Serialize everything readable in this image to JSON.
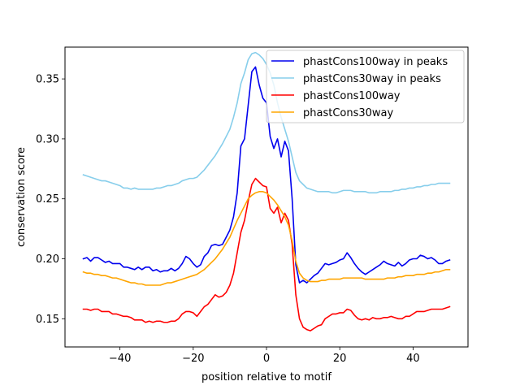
{
  "chart_data": {
    "type": "line",
    "title": "",
    "xlabel": "position relative to motif",
    "ylabel": "conservation score",
    "xlim": [
      -55,
      55
    ],
    "ylim": [
      0.1265,
      0.3765
    ],
    "xticks": [
      -40,
      -20,
      0,
      20,
      40
    ],
    "xtick_labels": [
      "−40",
      "−20",
      "0",
      "20",
      "40"
    ],
    "yticks": [
      0.15,
      0.2,
      0.25,
      0.3,
      0.35
    ],
    "ytick_labels": [
      "0.15",
      "0.20",
      "0.25",
      "0.30",
      "0.35"
    ],
    "legend_position": "top-right",
    "x": [
      -50,
      -49,
      -48,
      -47,
      -46,
      -45,
      -44,
      -43,
      -42,
      -41,
      -40,
      -39,
      -38,
      -37,
      -36,
      -35,
      -34,
      -33,
      -32,
      -31,
      -30,
      -29,
      -28,
      -27,
      -26,
      -25,
      -24,
      -23,
      -22,
      -21,
      -20,
      -19,
      -18,
      -17,
      -16,
      -15,
      -14,
      -13,
      -12,
      -11,
      -10,
      -9,
      -8,
      -7,
      -6,
      -5,
      -4,
      -3,
      -2,
      -1,
      0,
      1,
      2,
      3,
      4,
      5,
      6,
      7,
      8,
      9,
      10,
      11,
      12,
      13,
      14,
      15,
      16,
      17,
      18,
      19,
      20,
      21,
      22,
      23,
      24,
      25,
      26,
      27,
      28,
      29,
      30,
      31,
      32,
      33,
      34,
      35,
      36,
      37,
      38,
      39,
      40,
      41,
      42,
      43,
      44,
      45,
      46,
      47,
      48,
      49,
      50
    ],
    "series": [
      {
        "name": "phastCons100way in peaks",
        "color": "#0000ee",
        "values": [
          0.2,
          0.201,
          0.198,
          0.201,
          0.201,
          0.199,
          0.197,
          0.198,
          0.196,
          0.196,
          0.196,
          0.193,
          0.193,
          0.192,
          0.191,
          0.193,
          0.191,
          0.193,
          0.193,
          0.19,
          0.191,
          0.189,
          0.19,
          0.19,
          0.192,
          0.19,
          0.192,
          0.196,
          0.202,
          0.2,
          0.196,
          0.193,
          0.195,
          0.202,
          0.205,
          0.211,
          0.212,
          0.211,
          0.212,
          0.218,
          0.224,
          0.235,
          0.255,
          0.294,
          0.3,
          0.328,
          0.356,
          0.36,
          0.345,
          0.334,
          0.33,
          0.302,
          0.292,
          0.3,
          0.285,
          0.298,
          0.29,
          0.25,
          0.195,
          0.18,
          0.182,
          0.18,
          0.183,
          0.186,
          0.188,
          0.192,
          0.196,
          0.195,
          0.196,
          0.197,
          0.199,
          0.2,
          0.205,
          0.201,
          0.196,
          0.192,
          0.189,
          0.187,
          0.189,
          0.191,
          0.193,
          0.195,
          0.198,
          0.196,
          0.195,
          0.194,
          0.197,
          0.194,
          0.196,
          0.199,
          0.2,
          0.2,
          0.203,
          0.202,
          0.2,
          0.201,
          0.199,
          0.196,
          0.196,
          0.198,
          0.199
        ]
      },
      {
        "name": "phastCons30way in peaks",
        "color": "#87ceeb",
        "values": [
          0.27,
          0.269,
          0.268,
          0.267,
          0.266,
          0.265,
          0.265,
          0.264,
          0.263,
          0.262,
          0.261,
          0.259,
          0.259,
          0.258,
          0.259,
          0.258,
          0.258,
          0.258,
          0.258,
          0.258,
          0.259,
          0.259,
          0.26,
          0.261,
          0.261,
          0.262,
          0.263,
          0.265,
          0.266,
          0.267,
          0.267,
          0.268,
          0.271,
          0.274,
          0.278,
          0.282,
          0.286,
          0.291,
          0.296,
          0.302,
          0.308,
          0.318,
          0.33,
          0.346,
          0.355,
          0.366,
          0.371,
          0.372,
          0.37,
          0.367,
          0.362,
          0.355,
          0.345,
          0.33,
          0.318,
          0.308,
          0.298,
          0.285,
          0.272,
          0.265,
          0.262,
          0.259,
          0.258,
          0.257,
          0.256,
          0.256,
          0.256,
          0.256,
          0.255,
          0.255,
          0.256,
          0.257,
          0.257,
          0.257,
          0.256,
          0.256,
          0.256,
          0.256,
          0.255,
          0.255,
          0.255,
          0.256,
          0.256,
          0.256,
          0.256,
          0.257,
          0.257,
          0.258,
          0.258,
          0.259,
          0.259,
          0.26,
          0.26,
          0.261,
          0.261,
          0.262,
          0.262,
          0.263,
          0.263,
          0.263,
          0.263
        ]
      },
      {
        "name": "phastCons100way",
        "color": "#ff0000",
        "values": [
          0.158,
          0.158,
          0.157,
          0.158,
          0.158,
          0.156,
          0.156,
          0.156,
          0.154,
          0.154,
          0.153,
          0.152,
          0.152,
          0.151,
          0.149,
          0.149,
          0.149,
          0.147,
          0.148,
          0.147,
          0.148,
          0.148,
          0.147,
          0.147,
          0.148,
          0.148,
          0.15,
          0.154,
          0.156,
          0.156,
          0.155,
          0.152,
          0.156,
          0.16,
          0.162,
          0.166,
          0.17,
          0.168,
          0.169,
          0.172,
          0.178,
          0.188,
          0.205,
          0.222,
          0.232,
          0.248,
          0.262,
          0.267,
          0.264,
          0.261,
          0.26,
          0.242,
          0.238,
          0.243,
          0.23,
          0.238,
          0.232,
          0.212,
          0.17,
          0.15,
          0.143,
          0.141,
          0.14,
          0.142,
          0.144,
          0.145,
          0.15,
          0.152,
          0.154,
          0.154,
          0.155,
          0.155,
          0.158,
          0.157,
          0.153,
          0.15,
          0.149,
          0.15,
          0.149,
          0.151,
          0.15,
          0.15,
          0.151,
          0.151,
          0.152,
          0.151,
          0.15,
          0.15,
          0.152,
          0.152,
          0.154,
          0.156,
          0.156,
          0.156,
          0.157,
          0.158,
          0.158,
          0.158,
          0.158,
          0.159,
          0.16
        ]
      },
      {
        "name": "phastCons30way",
        "color": "#ffa500",
        "values": [
          0.189,
          0.188,
          0.188,
          0.187,
          0.187,
          0.186,
          0.186,
          0.185,
          0.184,
          0.184,
          0.183,
          0.182,
          0.181,
          0.18,
          0.18,
          0.179,
          0.179,
          0.178,
          0.178,
          0.178,
          0.178,
          0.178,
          0.179,
          0.18,
          0.18,
          0.181,
          0.182,
          0.183,
          0.184,
          0.185,
          0.186,
          0.187,
          0.189,
          0.191,
          0.194,
          0.197,
          0.2,
          0.204,
          0.208,
          0.213,
          0.218,
          0.225,
          0.232,
          0.238,
          0.244,
          0.25,
          0.253,
          0.255,
          0.256,
          0.256,
          0.255,
          0.252,
          0.249,
          0.245,
          0.24,
          0.235,
          0.228,
          0.215,
          0.198,
          0.188,
          0.184,
          0.182,
          0.181,
          0.181,
          0.181,
          0.182,
          0.182,
          0.183,
          0.183,
          0.183,
          0.183,
          0.184,
          0.184,
          0.184,
          0.184,
          0.184,
          0.184,
          0.183,
          0.183,
          0.183,
          0.183,
          0.183,
          0.183,
          0.184,
          0.184,
          0.184,
          0.185,
          0.185,
          0.186,
          0.186,
          0.186,
          0.187,
          0.187,
          0.187,
          0.188,
          0.188,
          0.189,
          0.189,
          0.19,
          0.191,
          0.191
        ]
      }
    ]
  }
}
